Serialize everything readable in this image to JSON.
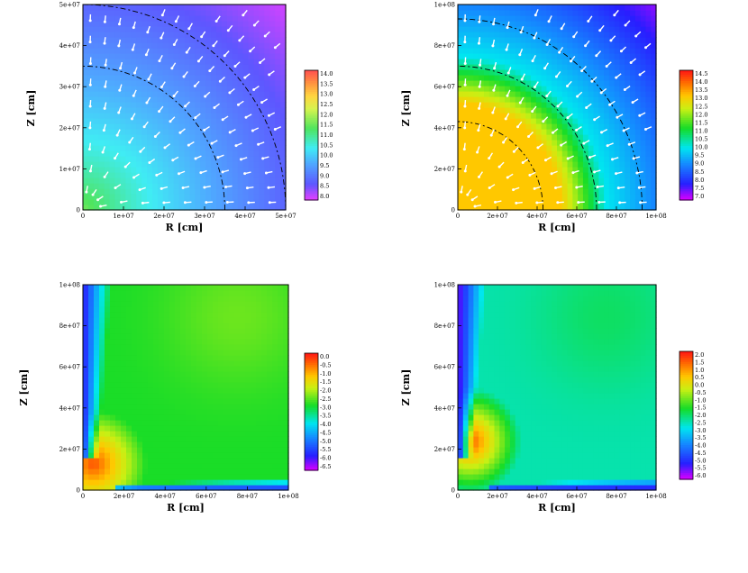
{
  "chart_data": [
    {
      "type": "heatmap",
      "panel": "top-left",
      "xlabel": "R [cm]",
      "ylabel": "Z [cm]",
      "xlim": [
        0,
        50000000.0
      ],
      "ylim": [
        0,
        50000000.0
      ],
      "xticks": [
        "0",
        "1e+07",
        "2e+07",
        "3e+07",
        "4e+07",
        "5e+07"
      ],
      "yticks": [
        "0",
        "1e+07",
        "2e+07",
        "3e+07",
        "4e+07",
        "5e+07"
      ],
      "colorbar": {
        "range": [
          8.0,
          14.0
        ],
        "labels": [
          "14.0",
          "13.5",
          "13.0",
          "12.5",
          "12.0",
          "11.5",
          "11.0",
          "10.5",
          "10.0",
          "9.5",
          "9.0",
          "8.5",
          "8.0"
        ],
        "colormap": "rainbow-light"
      },
      "field": {
        "center_value": 11.6,
        "edge_value": 8.1,
        "structure": "radial"
      },
      "contour_radii": [
        35000000.0,
        50000000.0
      ],
      "vectors": "inward-radial",
      "vector_color": "#ffffff"
    },
    {
      "type": "heatmap",
      "panel": "top-right",
      "xlabel": "R [cm]",
      "ylabel": "Z [cm]",
      "xlim": [
        0,
        100000000.0
      ],
      "ylim": [
        0,
        100000000.0
      ],
      "xticks": [
        "0",
        "2e+07",
        "4e+07",
        "6e+07",
        "8e+07",
        "1e+08"
      ],
      "yticks": [
        "0",
        "2e+07",
        "4e+07",
        "6e+07",
        "8e+07",
        "1e+08"
      ],
      "colorbar": {
        "range": [
          7.0,
          14.5
        ],
        "labels": [
          "14.5",
          "14.0",
          "13.5",
          "13.0",
          "12.5",
          "12.0",
          "11.5",
          "11.0",
          "10.5",
          "10.0",
          "9.5",
          "9.0",
          "8.5",
          "8.0",
          "7.5",
          "7.0"
        ],
        "colormap": "rainbow"
      },
      "field": {
        "core_value": 13.0,
        "core_radius": 52000000.0,
        "transition": [
          52000000.0,
          75000000.0
        ],
        "outer_values": [
          10.0,
          7.4
        ]
      },
      "contour_radii": [
        43000000.0,
        70000000.0,
        93000000.0
      ],
      "vectors": "inward-radial",
      "vector_color": "#ffffff"
    },
    {
      "type": "heatmap",
      "panel": "bottom-left",
      "xlabel": "R [cm]",
      "ylabel": "Z [cm]",
      "xlim": [
        0,
        100000000.0
      ],
      "ylim": [
        0,
        100000000.0
      ],
      "xticks": [
        "0",
        "2e+07",
        "4e+07",
        "6e+07",
        "8e+07",
        "1e+08"
      ],
      "yticks": [
        "0",
        "2e+07",
        "4e+07",
        "6e+07",
        "8e+07",
        "1e+08"
      ],
      "colorbar": {
        "range": [
          -6.5,
          0.0
        ],
        "labels": [
          "0.0",
          "-0.5",
          "-1.0",
          "-1.5",
          "-2.0",
          "-2.5",
          "-3.0",
          "-3.5",
          "-4.0",
          "-4.5",
          "-5.0",
          "-5.5",
          "-6.0",
          "-6.5"
        ],
        "colormap": "rainbow"
      },
      "field": {
        "background": -2.9,
        "blob": {
          "center": [
            5000000.0,
            13000000.0
          ],
          "peak": -0.4
        },
        "axis_jet": -5.8,
        "disk": -5.9
      }
    },
    {
      "type": "heatmap",
      "panel": "bottom-right",
      "xlabel": "R [cm]",
      "ylabel": "Z [cm]",
      "xlim": [
        0,
        100000000.0
      ],
      "ylim": [
        0,
        100000000.0
      ],
      "xticks": [
        "0",
        "2e+07",
        "4e+07",
        "6e+07",
        "8e+07",
        "1e+08"
      ],
      "yticks": [
        "0",
        "2e+07",
        "4e+07",
        "6e+07",
        "8e+07",
        "1e+08"
      ],
      "colorbar": {
        "range": [
          -6.0,
          2.0
        ],
        "labels": [
          "2.0",
          "1.5",
          "1.0",
          "0.5",
          "0.0",
          "-0.5",
          "-1.0",
          "-1.5",
          "-2.0",
          "-2.5",
          "-3.0",
          "-3.5",
          "-4.0",
          "-4.5",
          "-5.0",
          "-5.5",
          "-6.0"
        ],
        "colormap": "rainbow"
      },
      "field": {
        "background": -2.4,
        "blob": {
          "center": [
            6000000.0,
            24000000.0
          ],
          "peak": 1.5
        },
        "axis_jet": -5.5,
        "disk": -5.6
      }
    }
  ]
}
